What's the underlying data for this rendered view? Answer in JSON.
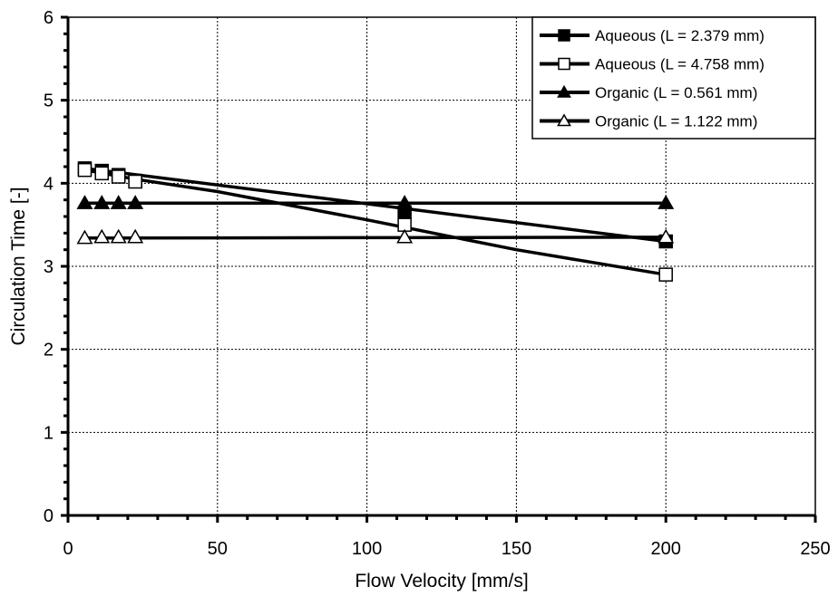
{
  "chart_data": {
    "type": "line",
    "title": "",
    "xlabel": "Flow Velocity [mm/s]",
    "ylabel": "Circulation Time [-]",
    "xlim": [
      0,
      250
    ],
    "ylim": [
      0,
      6
    ],
    "xticks": [
      0,
      50,
      100,
      150,
      200,
      250
    ],
    "yticks": [
      0,
      1,
      2,
      3,
      4,
      5,
      6
    ],
    "x_tick_labels": [
      "0",
      "50",
      "100",
      "150",
      "200",
      "250"
    ],
    "y_tick_labels": [
      "0",
      "1",
      "2",
      "3",
      "4",
      "5",
      "6"
    ],
    "grid": true,
    "legend_position": "top-right",
    "series": [
      {
        "name": "Aqueous (L = 2.379 mm)",
        "marker": "square-filled",
        "points": [
          [
            5.6,
            4.18
          ],
          [
            11.3,
            4.15
          ],
          [
            16.9,
            4.1
          ],
          [
            22.5,
            4.03
          ],
          [
            112.6,
            3.65
          ],
          [
            200,
            3.3
          ]
        ],
        "line": [
          [
            5.6,
            4.18
          ],
          [
            200,
            3.3
          ]
        ]
      },
      {
        "name": "Aqueous (L = 4.758 mm)",
        "marker": "square-open",
        "points": [
          [
            5.6,
            4.16
          ],
          [
            11.3,
            4.12
          ],
          [
            16.9,
            4.08
          ],
          [
            22.5,
            4.02
          ],
          [
            112.6,
            3.5
          ],
          [
            200,
            2.9
          ]
        ],
        "line": [
          [
            5.6,
            4.16
          ],
          [
            22.5,
            4.05
          ],
          [
            50,
            3.9
          ],
          [
            100,
            3.56
          ],
          [
            150,
            3.2
          ],
          [
            200,
            2.9
          ]
        ]
      },
      {
        "name": "Organic (L = 0.561 mm)",
        "marker": "triangle-filled",
        "points": [
          [
            5.6,
            3.76
          ],
          [
            11.3,
            3.76
          ],
          [
            16.9,
            3.76
          ],
          [
            22.5,
            3.76
          ],
          [
            112.6,
            3.76
          ],
          [
            200,
            3.76
          ]
        ],
        "line": [
          [
            5.6,
            3.76
          ],
          [
            200,
            3.76
          ]
        ]
      },
      {
        "name": "Organic (L = 1.122 mm)",
        "marker": "triangle-open",
        "points": [
          [
            5.6,
            3.34
          ],
          [
            11.3,
            3.35
          ],
          [
            16.9,
            3.35
          ],
          [
            22.5,
            3.35
          ],
          [
            112.6,
            3.35
          ],
          [
            200,
            3.35
          ]
        ],
        "line": [
          [
            5.6,
            3.34
          ],
          [
            200,
            3.35
          ]
        ]
      }
    ]
  }
}
